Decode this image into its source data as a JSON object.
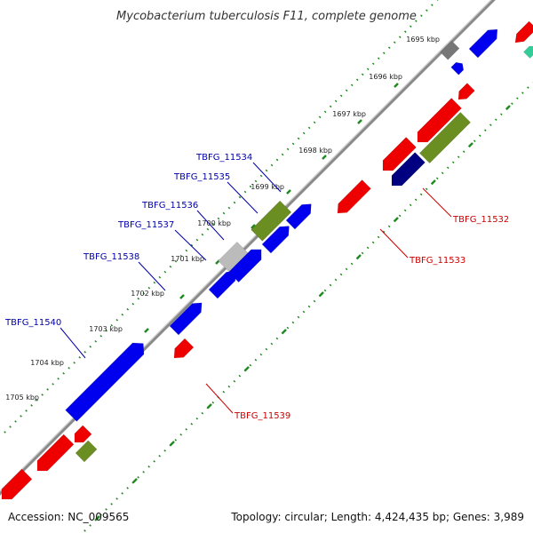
{
  "title": "Mycobacterium tuberculosis F11, complete genome",
  "footer": {
    "accession": "Accession: NC_009565",
    "summary": "Topology: circular; Length: 4,424,435 bp; Genes: 3,989"
  },
  "ticks": [
    "1695 kbp",
    "1696 kbp",
    "1697 kbp",
    "1698 kbp",
    "1699 kbp",
    "1700 kbp",
    "1701 kbp",
    "1702 kbp",
    "1703 kbp",
    "1704 kbp",
    "1705 kbp"
  ],
  "gene_labels": {
    "forward": [
      "TBFG_11534",
      "TBFG_11535",
      "TBFG_11536",
      "TBFG_11537",
      "TBFG_11538",
      "TBFG_11540"
    ],
    "reverse": [
      "TBFG_11532",
      "TBFG_11533",
      "TBFG_11539"
    ]
  },
  "colors": {
    "backbone": "#8a8a8a",
    "tick": "#1f8a1f",
    "forward_cds": "#0000ee",
    "reverse_cds": "#ee0000",
    "olive": "#6b8e23",
    "navy": "#000080",
    "gray": "#777777",
    "lightgray": "#bbbbbb",
    "teal": "#33cc99",
    "label_forward": "#0000aa",
    "label_reverse": "#cc0000"
  }
}
